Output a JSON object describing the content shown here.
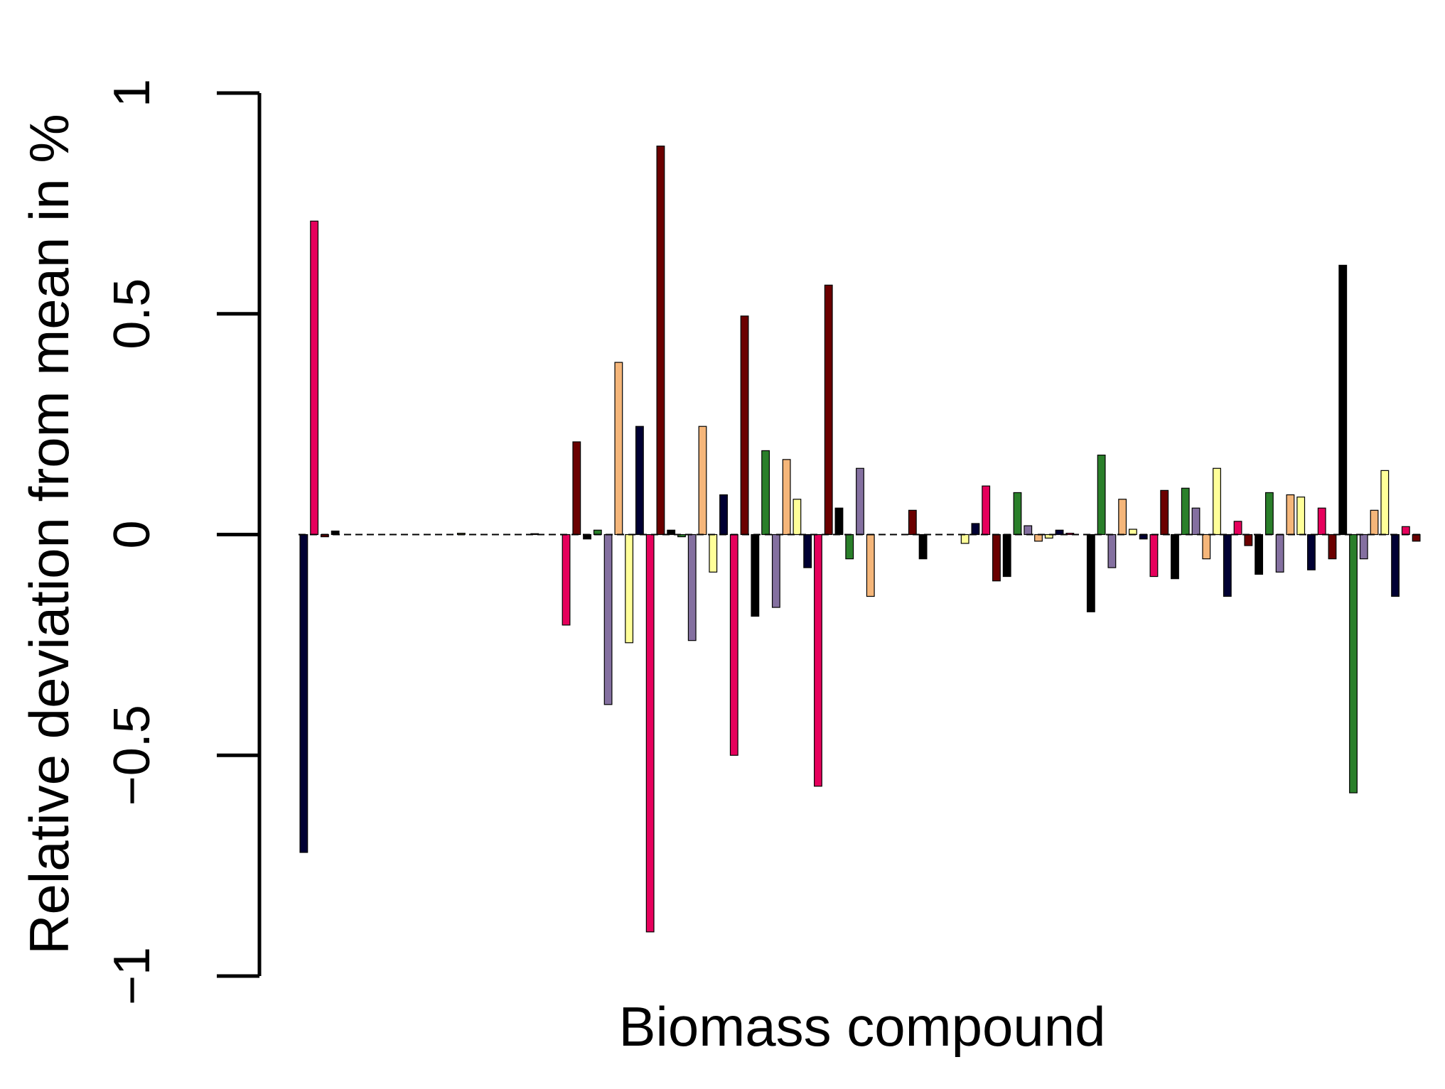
{
  "chart_data": {
    "type": "bar",
    "title": "",
    "xlabel": "Biomass compound",
    "ylabel": "Relative deviation from mean in %",
    "ylim": [
      -1,
      1
    ],
    "yticks": [
      {
        "value": 1,
        "label": "1"
      },
      {
        "value": 0.5,
        "label": "0.5"
      },
      {
        "value": 0,
        "label": "0"
      },
      {
        "value": -0.5,
        "label": "−0.5"
      },
      {
        "value": -1,
        "label": "−1"
      }
    ],
    "grid": false,
    "legend": "none",
    "bar_edge_color": "#000000",
    "palette": [
      "#000033",
      "#e6005c",
      "#6b0000",
      "#000000",
      "#2a7f2a",
      "#8470a0",
      "#f5b67a",
      "#ffff99"
    ],
    "values": [
      -0.72,
      0.71,
      -0.005,
      0.008,
      0,
      0,
      0,
      0,
      0,
      0,
      0,
      0,
      0,
      0,
      0,
      0.003,
      0,
      0,
      0,
      0,
      0,
      0,
      0.002,
      0,
      0,
      -0.205,
      0.21,
      -0.01,
      0.01,
      -0.385,
      0.39,
      -0.245,
      0.245,
      -0.9,
      0.88,
      0.01,
      -0.005,
      -0.24,
      0.245,
      -0.085,
      0.09,
      -0.5,
      0.495,
      -0.185,
      0.19,
      -0.165,
      0.17,
      0.08,
      -0.075,
      -0.57,
      0.565,
      0.06,
      -0.055,
      0.15,
      -0.14,
      0,
      0,
      0,
      0.055,
      -0.055,
      0,
      0,
      0,
      -0.02,
      0.025,
      0.11,
      -0.105,
      -0.095,
      0.095,
      0.02,
      -0.015,
      -0.008,
      0.01,
      0.003,
      0,
      -0.175,
      0.18,
      -0.075,
      0.08,
      0.012,
      -0.01,
      -0.095,
      0.1,
      -0.1,
      0.105,
      0.06,
      -0.055,
      0.15,
      -0.14,
      0.03,
      -0.025,
      -0.09,
      0.095,
      -0.085,
      0.09,
      0.085,
      -0.08,
      0.06,
      -0.055,
      0.61,
      -0.585,
      -0.055,
      0.055,
      0.145,
      -0.14,
      0.018,
      -0.015
    ]
  }
}
